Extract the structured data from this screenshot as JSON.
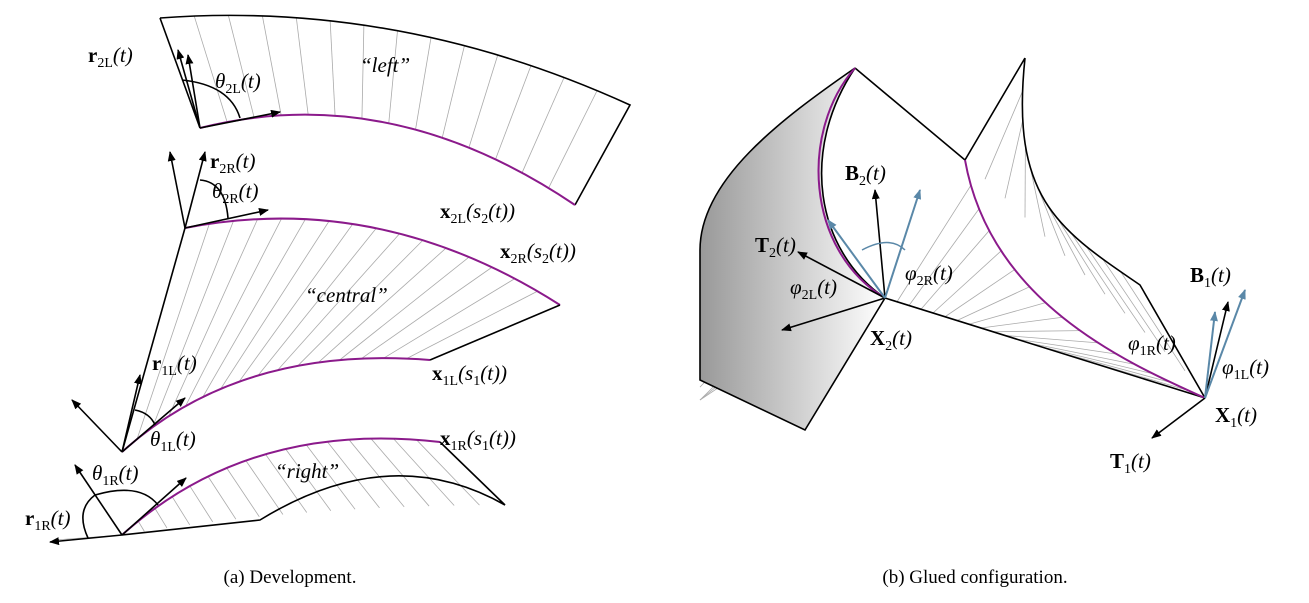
{
  "diagram_a": {
    "caption": "(a) Development.",
    "labels": [
      [
        {
          "text": "r",
          "bold": true
        },
        {
          "text": "2L",
          "sub": true
        },
        {
          "text": "(t)"
        }
      ],
      [
        {
          "text": "θ"
        },
        {
          "text": "2L",
          "sub": true
        },
        {
          "text": "(t)"
        }
      ],
      [
        {
          "text": "“left”"
        }
      ],
      [
        {
          "text": "r",
          "bold": true
        },
        {
          "text": "2R",
          "sub": true
        },
        {
          "text": "(t)"
        }
      ],
      [
        {
          "text": "θ"
        },
        {
          "text": "2R",
          "sub": true
        },
        {
          "text": "(t)"
        }
      ],
      [
        {
          "text": "x",
          "bold": true
        },
        {
          "text": "2L",
          "sub": true
        },
        {
          "text": "(s"
        },
        {
          "text": "2",
          "sub": true
        },
        {
          "text": "(t))"
        }
      ],
      [
        {
          "text": "x",
          "bold": true
        },
        {
          "text": "2R",
          "sub": true
        },
        {
          "text": "(s"
        },
        {
          "text": "2",
          "sub": true
        },
        {
          "text": "(t))"
        }
      ],
      [
        {
          "text": "“central”"
        }
      ],
      [
        {
          "text": "r",
          "bold": true
        },
        {
          "text": "1L",
          "sub": true
        },
        {
          "text": "(t)"
        }
      ],
      [
        {
          "text": "x",
          "bold": true
        },
        {
          "text": "1L",
          "sub": true
        },
        {
          "text": "(s"
        },
        {
          "text": "1",
          "sub": true
        },
        {
          "text": "(t))"
        }
      ],
      [
        {
          "text": "θ"
        },
        {
          "text": "1L",
          "sub": true
        },
        {
          "text": "(t)"
        }
      ],
      [
        {
          "text": "x",
          "bold": true
        },
        {
          "text": "1R",
          "sub": true
        },
        {
          "text": "(s"
        },
        {
          "text": "1",
          "sub": true
        },
        {
          "text": "(t))"
        }
      ],
      [
        {
          "text": "θ"
        },
        {
          "text": "1R",
          "sub": true
        },
        {
          "text": "(t)"
        }
      ],
      [
        {
          "text": "“right”"
        }
      ],
      [
        {
          "text": "r",
          "bold": true
        },
        {
          "text": "1R",
          "sub": true
        },
        {
          "text": "(t)"
        }
      ]
    ]
  },
  "diagram_b": {
    "caption": "(b) Glued configuration.",
    "labels": [
      [
        {
          "text": "B",
          "bold": true
        },
        {
          "text": "2",
          "sub": true
        },
        {
          "text": "(t)"
        }
      ],
      [
        {
          "text": "T",
          "bold": true
        },
        {
          "text": "2",
          "sub": true
        },
        {
          "text": "(t)"
        }
      ],
      [
        {
          "text": "φ"
        },
        {
          "text": "2R",
          "sub": true
        },
        {
          "text": "(t)"
        }
      ],
      [
        {
          "text": "φ"
        },
        {
          "text": "2L",
          "sub": true
        },
        {
          "text": "(t)"
        }
      ],
      [
        {
          "text": "X",
          "bold": true
        },
        {
          "text": "2",
          "sub": true
        },
        {
          "text": "(t)"
        }
      ],
      [
        {
          "text": "B",
          "bold": true
        },
        {
          "text": "1",
          "sub": true
        },
        {
          "text": "(t)"
        }
      ],
      [
        {
          "text": "φ"
        },
        {
          "text": "1R",
          "sub": true
        },
        {
          "text": "(t)"
        }
      ],
      [
        {
          "text": "φ"
        },
        {
          "text": "1L",
          "sub": true
        },
        {
          "text": "(t)"
        }
      ],
      [
        {
          "text": "X",
          "bold": true
        },
        {
          "text": "1",
          "sub": true
        },
        {
          "text": "(t)"
        }
      ],
      [
        {
          "text": "T",
          "bold": true
        },
        {
          "text": "1",
          "sub": true
        },
        {
          "text": "(t)"
        }
      ]
    ]
  }
}
